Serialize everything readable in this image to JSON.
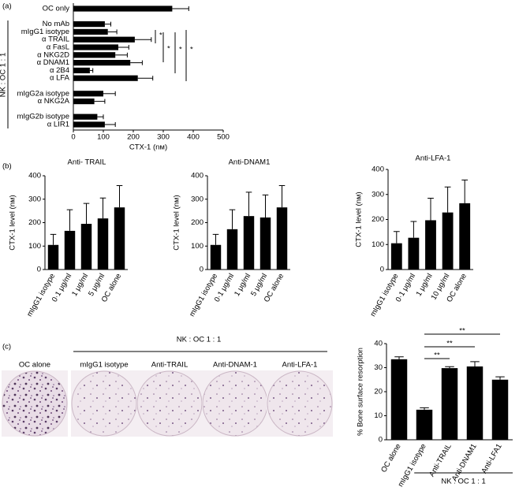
{
  "panel_labels": [
    "(a)",
    "(b)",
    "(c)"
  ],
  "chart_data": [
    {
      "type": "hbar",
      "xlabel": "CTX-1 (nм)",
      "group_label": "NK : OC 1 : 1",
      "color": "#000000",
      "categories": [
        "OC only",
        null,
        "No mAb",
        "mIgG1 isotype",
        "α TRAIL",
        "α FasL",
        "α NKG2D",
        "α DNAM1",
        "α 2B4",
        "α LFA",
        null,
        "mIgG2a isotype",
        "α NKG2A",
        null,
        "mIgG2b isotype",
        "α LIR1"
      ],
      "values": [
        330,
        null,
        105,
        115,
        205,
        150,
        140,
        190,
        55,
        215,
        null,
        100,
        70,
        null,
        80,
        105
      ],
      "errors": [
        55,
        null,
        20,
        30,
        55,
        35,
        40,
        40,
        10,
        50,
        null,
        40,
        35,
        null,
        20,
        35
      ],
      "xlim": [
        0,
        500
      ],
      "xticks": [
        0,
        100,
        200,
        300,
        400,
        500
      ],
      "annotations": [
        "*",
        "*",
        "*",
        "*"
      ]
    },
    {
      "type": "bar",
      "title": "Anti- TRAIL",
      "ylabel": "CTX-1 level (nм)",
      "color": "#000000",
      "categories": [
        "mIgG1 isotype",
        "0·1 μg/ml",
        "1 μg/ml",
        "5 μg/ml",
        "OC alone"
      ],
      "values": [
        105,
        165,
        195,
        218,
        265
      ],
      "errors": [
        45,
        90,
        87,
        87,
        93
      ],
      "ylim": [
        0,
        400
      ],
      "yticks": [
        0,
        100,
        200,
        300,
        400
      ]
    },
    {
      "type": "bar",
      "title": "Anti-DNAM1",
      "ylabel": "CTX-1 level (nм)",
      "color": "#000000",
      "categories": [
        "mIgG1 isotype",
        "0·1 μg/ml",
        "1 μg/ml",
        "5 μg/ml",
        "OC alone"
      ],
      "values": [
        105,
        172,
        228,
        222,
        265
      ],
      "errors": [
        45,
        83,
        102,
        96,
        93
      ],
      "ylim": [
        0,
        400
      ],
      "yticks": [
        0,
        100,
        200,
        300,
        400
      ]
    },
    {
      "type": "bar",
      "title": "Anti-LFA-1",
      "ylabel": "CTX-1 level (nм)",
      "color": "#000000",
      "categories": [
        "mIgG1 isotype",
        "0·1 μg/ml",
        "1 μg/ml",
        "10 μg/ml",
        "OC alone"
      ],
      "values": [
        105,
        127,
        197,
        228,
        265
      ],
      "errors": [
        47,
        65,
        88,
        102,
        93
      ],
      "ylim": [
        0,
        400
      ],
      "yticks": [
        0,
        100,
        200,
        300,
        400
      ]
    },
    {
      "type": "bar",
      "ylabel": "% Bone surface resorption",
      "group_label": "NK : OC 1 : 1",
      "color": "#000000",
      "categories": [
        "OC alone",
        "mIgG1 isotype",
        "Anti-TRAIL",
        "Anti-DNAM1",
        "Anti-LFA1"
      ],
      "values": [
        33.5,
        12.5,
        29.8,
        30.5,
        25
      ],
      "errors": [
        1,
        0.8,
        0.6,
        2,
        1.2
      ],
      "ylim": [
        0,
        40
      ],
      "yticks": [
        0,
        10,
        20,
        30,
        40
      ],
      "annotations": [
        "**",
        "**",
        "**"
      ]
    }
  ],
  "image_panel": {
    "group_label": "NK : OC 1 : 1",
    "labels": [
      "OC alone",
      "mIgG1 isotype",
      "Anti-TRAIL",
      "Anti-DNAM-1",
      "Anti-LFA-1"
    ]
  }
}
